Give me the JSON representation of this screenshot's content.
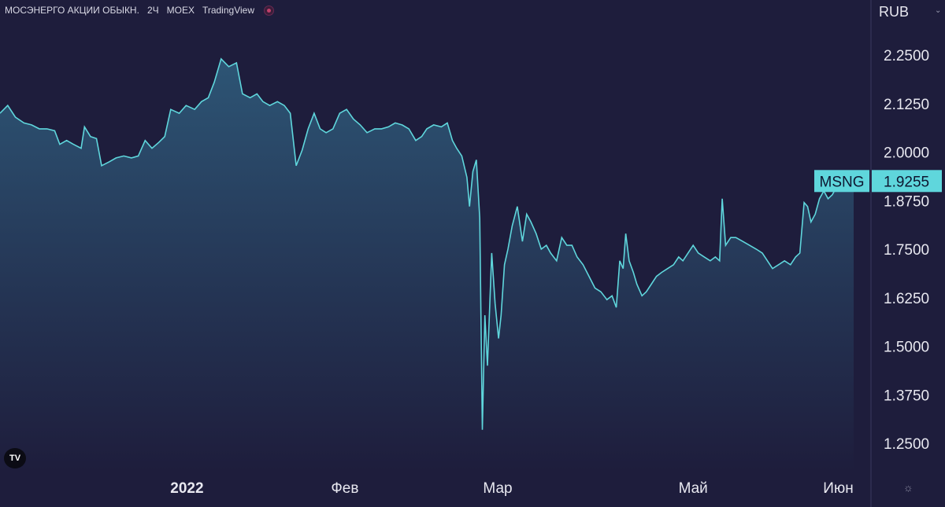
{
  "header": {
    "symbol_name": "МОСЭНЕРГО АКЦИИ ОБЫКН.",
    "interval": "2Ч",
    "exchange": "MOEX",
    "source": "TradingView"
  },
  "currency": "RUB",
  "colors": {
    "background": "#1e1d3c",
    "line": "#5fd6dc",
    "area_top": "#2c4a6a",
    "label_bg": "#5fd6dc"
  },
  "chart_data": {
    "type": "area",
    "ticker": "MSNG",
    "last_price": "1.9255",
    "ylim": [
      1.21,
      2.33
    ],
    "y_ticks": [
      "2.2500",
      "2.1250",
      "2.0000",
      "1.8750",
      "1.7500",
      "1.6250",
      "1.5000",
      "1.3750",
      "1.2500"
    ],
    "x_ticks": [
      {
        "label": "2022",
        "t": 0.219,
        "bold": true
      },
      {
        "label": "Фев",
        "t": 0.404,
        "bold": false
      },
      {
        "label": "Мар",
        "t": 0.583,
        "bold": false
      },
      {
        "label": "Май",
        "t": 0.812,
        "bold": false
      },
      {
        "label": "Июн",
        "t": 0.982,
        "bold": false
      }
    ],
    "series": [
      {
        "points": [
          [
            0.0,
            2.1
          ],
          [
            0.009,
            2.12
          ],
          [
            0.018,
            2.09
          ],
          [
            0.028,
            2.075
          ],
          [
            0.037,
            2.07
          ],
          [
            0.046,
            2.06
          ],
          [
            0.055,
            2.06
          ],
          [
            0.064,
            2.055
          ],
          [
            0.07,
            2.02
          ],
          [
            0.078,
            2.03
          ],
          [
            0.086,
            2.02
          ],
          [
            0.095,
            2.01
          ],
          [
            0.099,
            2.065
          ],
          [
            0.106,
            2.04
          ],
          [
            0.113,
            2.035
          ],
          [
            0.119,
            1.965
          ],
          [
            0.128,
            1.975
          ],
          [
            0.136,
            1.985
          ],
          [
            0.145,
            1.99
          ],
          [
            0.154,
            1.985
          ],
          [
            0.162,
            1.99
          ],
          [
            0.17,
            2.03
          ],
          [
            0.178,
            2.01
          ],
          [
            0.186,
            2.025
          ],
          [
            0.193,
            2.04
          ],
          [
            0.2,
            2.11
          ],
          [
            0.21,
            2.1
          ],
          [
            0.218,
            2.12
          ],
          [
            0.228,
            2.11
          ],
          [
            0.236,
            2.13
          ],
          [
            0.244,
            2.14
          ],
          [
            0.251,
            2.18
          ],
          [
            0.259,
            2.24
          ],
          [
            0.268,
            2.22
          ],
          [
            0.277,
            2.23
          ],
          [
            0.284,
            2.15
          ],
          [
            0.293,
            2.14
          ],
          [
            0.301,
            2.15
          ],
          [
            0.308,
            2.13
          ],
          [
            0.316,
            2.12
          ],
          [
            0.325,
            2.13
          ],
          [
            0.333,
            2.12
          ],
          [
            0.34,
            2.1
          ],
          [
            0.347,
            1.965
          ],
          [
            0.354,
            2.005
          ],
          [
            0.361,
            2.06
          ],
          [
            0.368,
            2.1
          ],
          [
            0.375,
            2.06
          ],
          [
            0.382,
            2.05
          ],
          [
            0.39,
            2.06
          ],
          [
            0.398,
            2.1
          ],
          [
            0.406,
            2.11
          ],
          [
            0.414,
            2.085
          ],
          [
            0.422,
            2.07
          ],
          [
            0.43,
            2.05
          ],
          [
            0.439,
            2.06
          ],
          [
            0.447,
            2.06
          ],
          [
            0.455,
            2.065
          ],
          [
            0.463,
            2.075
          ],
          [
            0.471,
            2.07
          ],
          [
            0.479,
            2.06
          ],
          [
            0.487,
            2.03
          ],
          [
            0.494,
            2.04
          ],
          [
            0.5,
            2.06
          ],
          [
            0.508,
            2.07
          ],
          [
            0.517,
            2.065
          ],
          [
            0.524,
            2.075
          ],
          [
            0.53,
            2.03
          ],
          [
            0.535,
            2.01
          ],
          [
            0.541,
            1.99
          ],
          [
            0.547,
            1.935
          ],
          [
            0.55,
            1.86
          ],
          [
            0.554,
            1.95
          ],
          [
            0.558,
            1.98
          ],
          [
            0.562,
            1.83
          ],
          [
            0.565,
            1.285
          ],
          [
            0.568,
            1.58
          ],
          [
            0.571,
            1.45
          ],
          [
            0.576,
            1.74
          ],
          [
            0.58,
            1.61
          ],
          [
            0.584,
            1.52
          ],
          [
            0.587,
            1.58
          ],
          [
            0.591,
            1.71
          ],
          [
            0.595,
            1.75
          ],
          [
            0.6,
            1.81
          ],
          [
            0.606,
            1.86
          ],
          [
            0.612,
            1.77
          ],
          [
            0.617,
            1.84
          ],
          [
            0.622,
            1.82
          ],
          [
            0.628,
            1.79
          ],
          [
            0.634,
            1.75
          ],
          [
            0.64,
            1.76
          ],
          [
            0.645,
            1.74
          ],
          [
            0.652,
            1.72
          ],
          [
            0.658,
            1.78
          ],
          [
            0.664,
            1.76
          ],
          [
            0.67,
            1.76
          ],
          [
            0.676,
            1.73
          ],
          [
            0.683,
            1.71
          ],
          [
            0.69,
            1.68
          ],
          [
            0.697,
            1.65
          ],
          [
            0.704,
            1.64
          ],
          [
            0.711,
            1.62
          ],
          [
            0.717,
            1.63
          ],
          [
            0.722,
            1.6
          ],
          [
            0.726,
            1.72
          ],
          [
            0.73,
            1.7
          ],
          [
            0.733,
            1.79
          ],
          [
            0.737,
            1.72
          ],
          [
            0.742,
            1.69
          ],
          [
            0.746,
            1.66
          ],
          [
            0.752,
            1.63
          ],
          [
            0.757,
            1.64
          ],
          [
            0.763,
            1.66
          ],
          [
            0.769,
            1.68
          ],
          [
            0.775,
            1.69
          ],
          [
            0.782,
            1.7
          ],
          [
            0.789,
            1.71
          ],
          [
            0.795,
            1.73
          ],
          [
            0.8,
            1.72
          ],
          [
            0.806,
            1.74
          ],
          [
            0.812,
            1.76
          ],
          [
            0.818,
            1.74
          ],
          [
            0.825,
            1.73
          ],
          [
            0.832,
            1.72
          ],
          [
            0.838,
            1.73
          ],
          [
            0.843,
            1.72
          ],
          [
            0.846,
            1.88
          ],
          [
            0.85,
            1.76
          ],
          [
            0.856,
            1.78
          ],
          [
            0.862,
            1.78
          ],
          [
            0.87,
            1.77
          ],
          [
            0.878,
            1.76
          ],
          [
            0.886,
            1.75
          ],
          [
            0.893,
            1.74
          ],
          [
            0.899,
            1.72
          ],
          [
            0.905,
            1.7
          ],
          [
            0.912,
            1.71
          ],
          [
            0.919,
            1.72
          ],
          [
            0.926,
            1.71
          ],
          [
            0.932,
            1.73
          ],
          [
            0.937,
            1.74
          ],
          [
            0.942,
            1.87
          ],
          [
            0.946,
            1.86
          ],
          [
            0.95,
            1.82
          ],
          [
            0.955,
            1.84
          ],
          [
            0.96,
            1.88
          ],
          [
            0.965,
            1.9
          ],
          [
            0.97,
            1.88
          ],
          [
            0.975,
            1.89
          ],
          [
            0.98,
            1.91
          ],
          [
            0.985,
            1.9
          ],
          [
            0.99,
            1.92
          ],
          [
            1.0,
            1.925
          ]
        ]
      }
    ]
  }
}
